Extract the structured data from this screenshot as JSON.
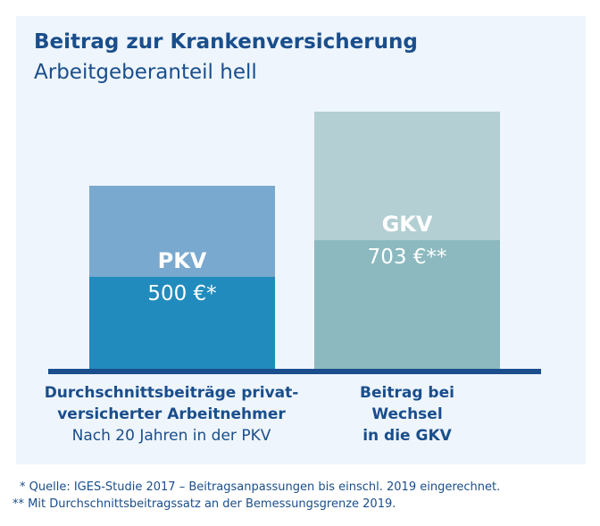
{
  "chart_data": {
    "type": "bar",
    "title": "Beitrag zur Krankenversicherung",
    "subtitle": "Arbeitgeberanteil hell",
    "xlabel": "",
    "ylabel": "",
    "categories": [
      "Durchschnittsbeiträge privat-versicherter Arbeitnehmer Nach 20 Jahren in der PKV",
      "Beitrag bei Wechsel in die GKV"
    ],
    "values": [
      500,
      703
    ],
    "bars": [
      {
        "name": "PKV",
        "value": 500,
        "value_label": "500 €*",
        "total_color": "#7aa9cf",
        "lower_color": "#228bbd",
        "employer_share_fraction": 0.5,
        "category_lines": [
          {
            "text": "Durchschnittsbeiträge privat-",
            "bold": true
          },
          {
            "text": "versicherter Arbeitnehmer",
            "bold": true
          },
          {
            "text": "Nach 20 Jahren in der PKV",
            "bold": false
          }
        ]
      },
      {
        "name": "GKV",
        "value": 703,
        "value_label": "703 €**",
        "total_color": "#b3cfd3",
        "lower_color": "#8cb9bf",
        "employer_share_fraction": 0.5,
        "category_lines": [
          {
            "text": "Beitrag bei",
            "bold": true
          },
          {
            "text": "Wechsel",
            "bold": true
          },
          {
            "text": "in die GKV",
            "bold": true
          }
        ]
      }
    ],
    "baseline_color": "#1a4e8c",
    "grid": false
  },
  "footnotes": [
    "* Quelle: IGES-Studie 2017 – Beitragsanpassungen bis einschl. 2019 eingerechnet.",
    "** Mit Durchschnittsbeitragssatz an der Bemessungsgrenze 2019."
  ],
  "colors": {
    "text": "#1a4e8c",
    "panel_background": "#eef5fc"
  }
}
